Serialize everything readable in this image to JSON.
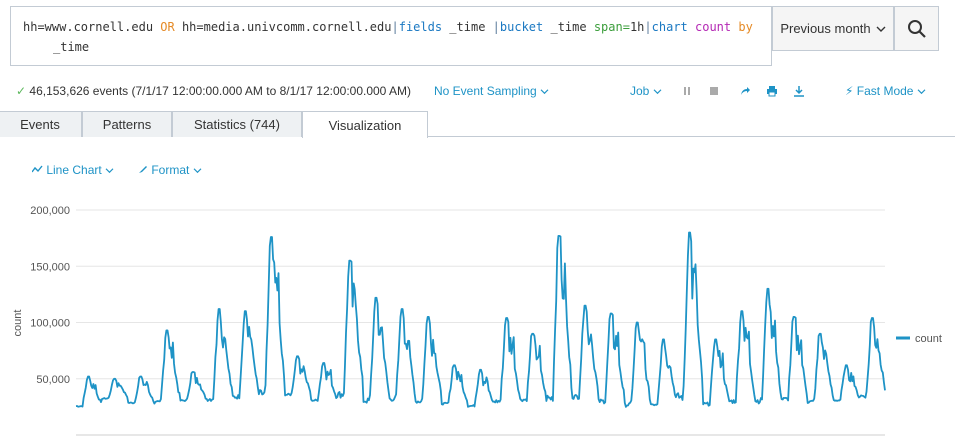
{
  "search": {
    "line1": [
      {
        "text": "hh=www.cornell.edu ",
        "cls": "kw-plain"
      },
      {
        "text": "OR",
        "cls": "kw-or"
      },
      {
        "text": " hh=media.univcomm.cornell.edu",
        "cls": "kw-plain"
      },
      {
        "text": "|",
        "cls": "kw-pipe"
      },
      {
        "text": "fields",
        "cls": "kw-cmd"
      },
      {
        "text": " _time ",
        "cls": "kw-plain"
      },
      {
        "text": "|",
        "cls": "kw-pipe"
      },
      {
        "text": "bucket",
        "cls": "kw-cmd"
      },
      {
        "text": " _time ",
        "cls": "kw-plain"
      },
      {
        "text": "span=",
        "cls": "kw-arg"
      },
      {
        "text": "1h",
        "cls": "kw-plain"
      },
      {
        "text": "|",
        "cls": "kw-pipe"
      },
      {
        "text": "chart",
        "cls": "kw-cmd"
      },
      {
        "text": " count ",
        "cls": "kw-fn"
      },
      {
        "text": "by",
        "cls": "kw-by"
      }
    ],
    "line2": "_time"
  },
  "timepicker": {
    "label": "Previous month"
  },
  "status": {
    "events_text": "46,153,626 events (7/1/17 12:00:00.000 AM to 8/1/17 12:00:00.000 AM)",
    "sampling": "No Event Sampling",
    "job": "Job",
    "mode": "Fast Mode"
  },
  "tabs": [
    {
      "label": "Events"
    },
    {
      "label": "Patterns"
    },
    {
      "label": "Statistics (744)"
    },
    {
      "label": "Visualization"
    }
  ],
  "viz": {
    "chart_type": "Line Chart",
    "format": "Format"
  },
  "colors": {
    "series": "#1e93c6",
    "accent": "#1e93c6",
    "check": "#5cb85c"
  },
  "chart_data": {
    "type": "line",
    "title": "",
    "xlabel": "",
    "ylabel": "count",
    "ylim": [
      0,
      200000
    ],
    "yticks": [
      "50,000",
      "100,000",
      "150,000",
      "200,000"
    ],
    "ytick_values": [
      50000,
      100000,
      150000,
      200000
    ],
    "grid": true,
    "legend": "right",
    "series": [
      {
        "name": "count",
        "x_start": "7/1/17 00:00",
        "x_end": "7/31/17 23:00",
        "daily_peaks": [
          52000,
          50000,
          52000,
          93000,
          56000,
          112000,
          110000,
          176000,
          70000,
          64000,
          155000,
          122000,
          112000,
          105000,
          62000,
          58000,
          104000,
          90000,
          177000,
          115000,
          108000,
          100000,
          85000,
          180000,
          85000,
          110000,
          130000,
          105000,
          90000,
          62000,
          104000
        ],
        "daily_troughs": [
          25000,
          32000,
          28000,
          27000,
          30000,
          30000,
          32000,
          33000,
          35000,
          30000,
          33000,
          28000,
          30000,
          28000,
          27000,
          25000,
          28000,
          30000,
          29000,
          32000,
          28000,
          25000,
          26000,
          30000,
          26000,
          28000,
          28000,
          30000,
          28000,
          30000,
          33000
        ]
      }
    ]
  }
}
